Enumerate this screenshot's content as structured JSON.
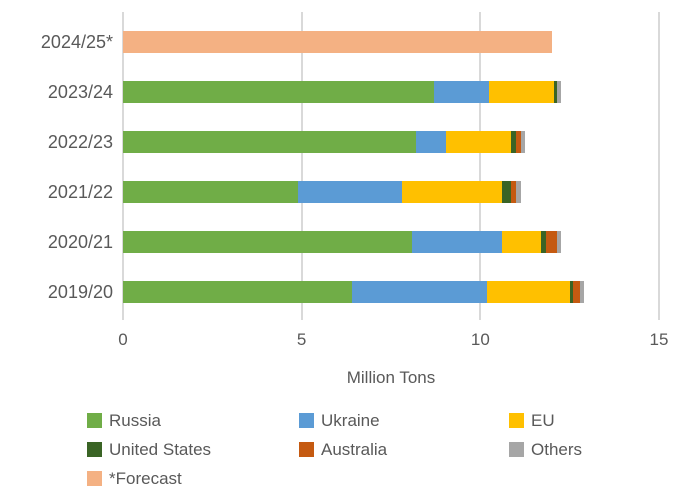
{
  "chart_data": {
    "type": "bar",
    "orientation": "horizontal-stacked",
    "title": "",
    "xlabel": "Million Tons",
    "ylabel": "",
    "xlim": [
      0,
      15
    ],
    "xticks": [
      0,
      5,
      10,
      15
    ],
    "grid": "vertical-light",
    "legend_position": "bottom",
    "categories": [
      "2024/25*",
      "2023/24",
      "2022/23",
      "2021/22",
      "2020/21",
      "2019/20"
    ],
    "series": [
      {
        "name": "Russia",
        "color": "#70AD47",
        "values": [
          0,
          8.7,
          8.2,
          4.9,
          8.1,
          6.4
        ]
      },
      {
        "name": "Ukraine",
        "color": "#5B9BD5",
        "values": [
          0,
          1.55,
          0.85,
          2.9,
          2.5,
          3.8
        ]
      },
      {
        "name": "EU",
        "color": "#FFC000",
        "values": [
          0,
          1.8,
          1.8,
          2.8,
          1.1,
          2.3
        ]
      },
      {
        "name": "United States",
        "color": "#3A6425",
        "values": [
          0,
          0.1,
          0.15,
          0.25,
          0.15,
          0.1
        ]
      },
      {
        "name": "Australia",
        "color": "#C55A11",
        "values": [
          0,
          0,
          0.15,
          0.15,
          0.3,
          0.2
        ]
      },
      {
        "name": "Others",
        "color": "#A6A6A6",
        "values": [
          0,
          0.1,
          0.1,
          0.15,
          0.1,
          0.1
        ]
      },
      {
        "name": "*Forecast",
        "color": "#F4B183",
        "values": [
          12.0,
          0,
          0,
          0,
          0,
          0
        ]
      }
    ]
  },
  "colors": {
    "grid": "#D9D9D9",
    "text": "#595959",
    "background": "#FFFFFF"
  }
}
